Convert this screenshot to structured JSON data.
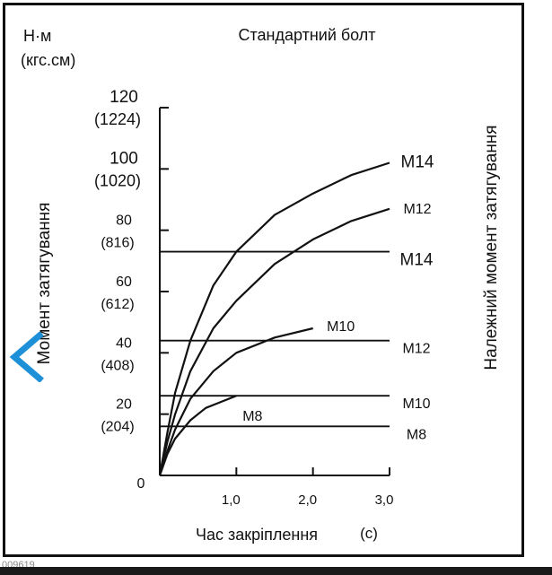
{
  "chart_data": {
    "type": "line",
    "title": "Стандартний болт",
    "unit_label": "Н·м",
    "unit_label_alt": "(кгс.см)",
    "ylabel": "Момент затягування",
    "ylabel_right": "Належний момент затягування",
    "xlabel": "Час закріплення",
    "xlabel_unit": "(с)",
    "xlim": [
      0,
      3.0
    ],
    "ylim": [
      0,
      120
    ],
    "x_ticks": [
      {
        "value": 1.0,
        "label": "1,0"
      },
      {
        "value": 2.0,
        "label": "2,0"
      },
      {
        "value": 3.0,
        "label": "3,0"
      }
    ],
    "y_ticks": [
      {
        "value": 0,
        "label": "0",
        "alt": ""
      },
      {
        "value": 20,
        "label": "20",
        "alt": "(204)"
      },
      {
        "value": 40,
        "label": "40",
        "alt": "(408)"
      },
      {
        "value": 60,
        "label": "60",
        "alt": "(612)"
      },
      {
        "value": 80,
        "label": "80",
        "alt": "(816)"
      },
      {
        "value": 100,
        "label": "100",
        "alt": "(1020)"
      },
      {
        "value": 120,
        "label": "120",
        "alt": "(1224)"
      }
    ],
    "series": [
      {
        "name": "M14",
        "x": [
          0,
          0.1,
          0.2,
          0.4,
          0.7,
          1.0,
          1.5,
          2.0,
          2.5,
          3.0
        ],
        "y": [
          0,
          14,
          27,
          44,
          62,
          73,
          85,
          92,
          98,
          102
        ]
      },
      {
        "name": "M12",
        "x": [
          0,
          0.1,
          0.2,
          0.4,
          0.7,
          1.0,
          1.5,
          2.0,
          2.5,
          3.0
        ],
        "y": [
          0,
          11,
          20,
          34,
          48,
          57,
          69,
          77,
          83,
          87
        ]
      },
      {
        "name": "M10",
        "x": [
          0,
          0.1,
          0.2,
          0.4,
          0.7,
          1.0,
          1.5,
          2.0
        ],
        "y": [
          0,
          8,
          15,
          25,
          34,
          40,
          45,
          48
        ]
      },
      {
        "name": "M8",
        "x": [
          0,
          0.1,
          0.2,
          0.4,
          0.6,
          0.8,
          1.0
        ],
        "y": [
          0,
          7,
          12,
          18,
          22,
          24,
          26
        ]
      }
    ],
    "reference_lines": [
      {
        "name": "M14",
        "y": 73
      },
      {
        "name": "M12",
        "y": 44
      },
      {
        "name": "M10",
        "y": 26
      },
      {
        "name": "M8",
        "y": 16
      }
    ]
  },
  "image_code": "009619",
  "nav": {
    "prev_icon": "chevron-left-icon",
    "accent": "#1e90d8"
  }
}
